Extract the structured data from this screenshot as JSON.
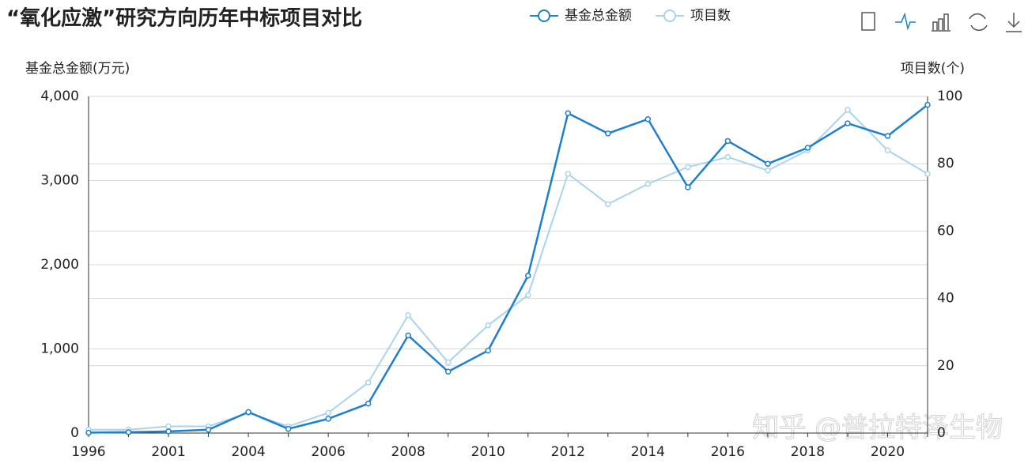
{
  "chart_data": {
    "type": "line",
    "title": "“氧化应激”研究方向历年中标项目对比",
    "y_label": "基金总金额(万元)",
    "y2_label": "项目数(个)",
    "watermark": "知乎 @普拉特泽生物",
    "categories": [
      "1996",
      null,
      "2001",
      null,
      "2004",
      null,
      "2006",
      null,
      "2008",
      null,
      "2010",
      null,
      "2012",
      null,
      "2014",
      null,
      "2016",
      null,
      "2018",
      null,
      "2020",
      null
    ],
    "series": [
      {
        "name": "基金总金额",
        "color": "#1f7fcb",
        "values": [
          5,
          10,
          20,
          40,
          250,
          50,
          170,
          350,
          1160,
          730,
          980,
          1870,
          3800,
          3560,
          3730,
          2920,
          3470,
          3200,
          3390,
          3680,
          3530,
          3900
        ]
      },
      {
        "name": "项目数",
        "color": "#a9d3ef",
        "axis": "y2",
        "values": [
          1,
          1,
          2,
          2,
          6,
          2,
          6,
          15,
          35,
          21,
          32,
          41,
          77,
          68,
          74,
          79,
          82,
          78,
          84,
          96,
          84,
          77
        ]
      }
    ],
    "ylim": [
      0,
      4000
    ],
    "yticks": [
      0,
      {
        "value": 1000,
        "label": "1,000"
      },
      {
        "value": 2000,
        "label": "2,000"
      },
      {
        "value": 3000,
        "label": "3,000"
      },
      {
        "value": 4000,
        "label": "4,000"
      }
    ],
    "y2lim": [
      0,
      100
    ],
    "y2ticks": [
      0,
      20,
      40,
      60,
      80,
      100
    ],
    "grid": true
  }
}
